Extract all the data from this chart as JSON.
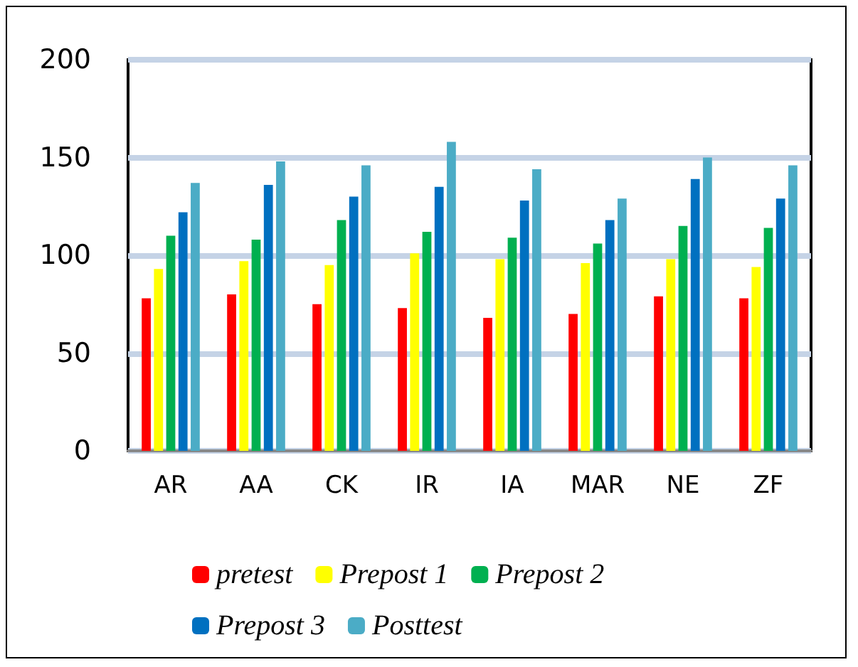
{
  "chart_data": {
    "type": "bar",
    "categories": [
      "AR",
      "AA",
      "CK",
      "IR",
      "IA",
      "MAR",
      "NE",
      "ZF"
    ],
    "series": [
      {
        "name": "pretest",
        "color": "#ff0000",
        "values": [
          78,
          80,
          75,
          73,
          68,
          70,
          79,
          78
        ]
      },
      {
        "name": "Prepost 1",
        "color": "#ffff00",
        "values": [
          93,
          97,
          95,
          101,
          98,
          96,
          98,
          94
        ]
      },
      {
        "name": "Prepost 2",
        "color": "#00b050",
        "values": [
          110,
          108,
          118,
          112,
          109,
          106,
          115,
          114
        ]
      },
      {
        "name": "Prepost 3",
        "color": "#0070c0",
        "values": [
          122,
          136,
          130,
          135,
          128,
          118,
          139,
          129
        ]
      },
      {
        "name": "Posttest",
        "color": "#4bacc6",
        "values": [
          137,
          148,
          146,
          158,
          144,
          129,
          150,
          146
        ]
      }
    ],
    "ylim": [
      0,
      200
    ],
    "yticks": [
      0,
      50,
      100,
      150,
      200
    ],
    "grid": "y",
    "legend": "bottom"
  }
}
